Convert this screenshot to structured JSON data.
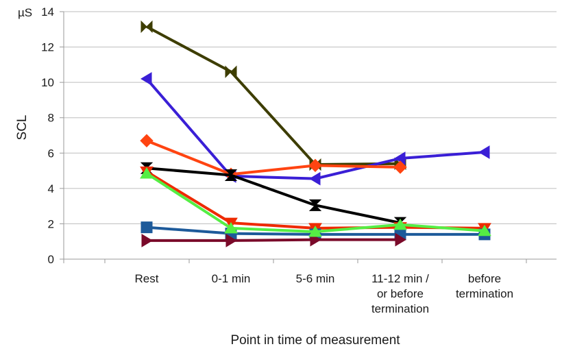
{
  "chart_data": {
    "type": "line",
    "unit_label": "µS",
    "ylabel": "SCL",
    "xlabel": "Point in time of measurement",
    "ylim": [
      0,
      14
    ],
    "y_ticks": [
      0,
      2,
      4,
      6,
      8,
      10,
      12,
      14
    ],
    "grid": true,
    "categories": [
      [
        "Rest"
      ],
      [
        "0-1 min"
      ],
      [
        "5-6 min"
      ],
      [
        "11-12 min /",
        "or before",
        "termination"
      ],
      [
        "before",
        "termination"
      ]
    ],
    "series": [
      {
        "color": "#3d3d00",
        "marker": "bowtie",
        "values": [
          13.15,
          10.6,
          5.35,
          5.4,
          null
        ]
      },
      {
        "color": "#3a1fd6",
        "marker": "triangle-left",
        "values": [
          10.2,
          4.7,
          4.55,
          5.7,
          6.05
        ]
      },
      {
        "color": "#ff4411",
        "marker": "diamond",
        "values": [
          6.7,
          4.8,
          5.3,
          5.2,
          null
        ]
      },
      {
        "color": "#000000",
        "marker": "hourglass",
        "values": [
          5.15,
          4.75,
          3.05,
          2.05,
          null
        ]
      },
      {
        "color": "#ee2a00",
        "marker": "triangle-down",
        "values": [
          4.95,
          2.05,
          1.75,
          1.8,
          1.75
        ]
      },
      {
        "color": "#1d5a9a",
        "marker": "square",
        "values": [
          1.8,
          1.45,
          1.4,
          1.4,
          1.4
        ]
      },
      {
        "color": "#7a0a2a",
        "marker": "triangle-right",
        "values": [
          1.05,
          1.05,
          1.1,
          1.1,
          null
        ]
      },
      {
        "color": "#55ee44",
        "marker": "triangle-up",
        "values": [
          4.85,
          1.75,
          1.55,
          1.95,
          1.6
        ]
      }
    ]
  }
}
